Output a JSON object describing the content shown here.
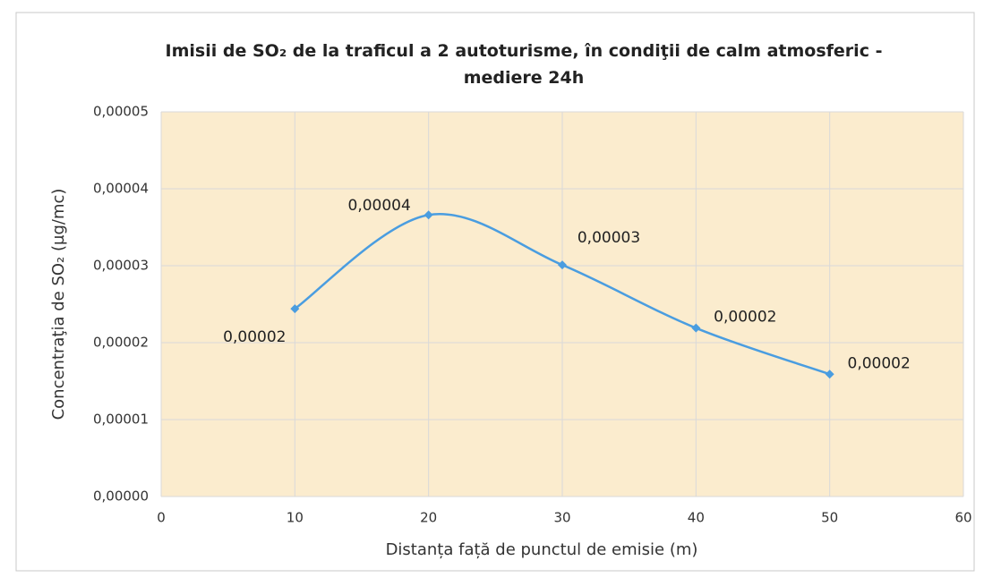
{
  "chart_data": {
    "type": "scatter",
    "title": "Imisii de SO₂ de la traficul a 2 autoturisme, în condiţii de calm atmosferic - mediere 24h",
    "xlabel": "Distanța față de punctul de emisie (m)",
    "ylabel": "Concentraţia de  SO₂ (µg/mc)",
    "series": [
      {
        "color": "#4a9de0",
        "x": [
          10,
          20,
          30,
          40,
          50
        ],
        "values": [
          2.44e-05,
          3.66e-05,
          3.01e-05,
          2.19e-05,
          1.59e-05
        ],
        "value_labels": [
          "0,00002",
          "0,00004",
          "0,00003",
          "0,00002",
          "0,00002"
        ]
      }
    ],
    "xlim": [
      0,
      60
    ],
    "xticks": [
      0,
      10,
      20,
      30,
      40,
      50,
      60
    ],
    "ylim": [
      0,
      5e-05
    ],
    "yticks": [
      {
        "value": 0,
        "label": "0,00000"
      },
      {
        "value": 1e-05,
        "label": "0,00001"
      },
      {
        "value": 2e-05,
        "label": "0,00002"
      },
      {
        "value": 3e-05,
        "label": "0,00003"
      },
      {
        "value": 4e-05,
        "label": "0,00004"
      },
      {
        "value": 5e-05,
        "label": "0,00005"
      }
    ],
    "grid": true
  }
}
